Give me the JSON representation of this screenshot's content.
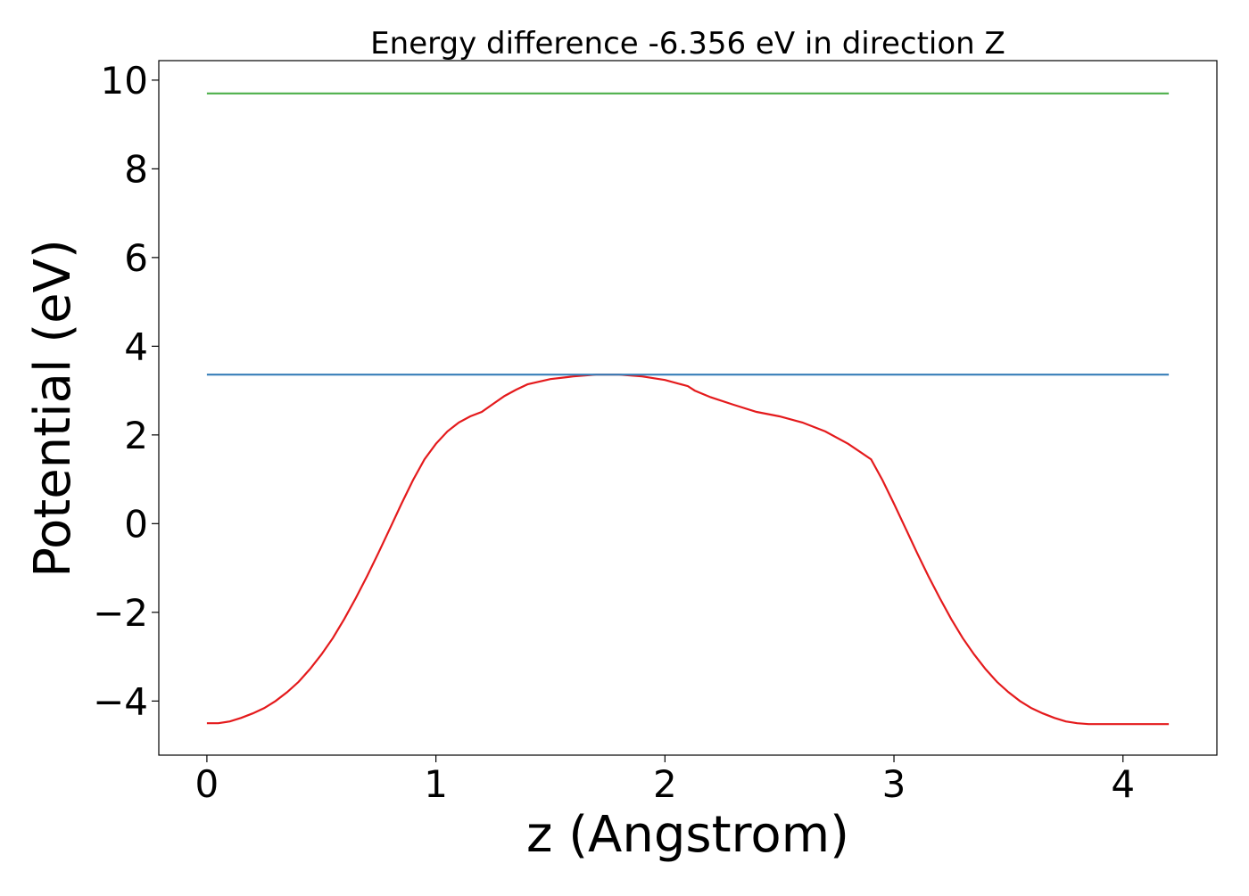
{
  "chart_data": {
    "type": "line",
    "title": "Energy difference -6.356 eV in direction Z",
    "xlabel": "z (Angstrom)",
    "ylabel": "Potential (eV)",
    "xlim": [
      -0.21,
      4.41
    ],
    "ylim": [
      -5.22,
      10.44
    ],
    "xticks": [
      0,
      1,
      2,
      3,
      4
    ],
    "xtick_labels": [
      "0",
      "1",
      "2",
      "3",
      "4"
    ],
    "yticks": [
      -4,
      -2,
      0,
      2,
      4,
      6,
      8,
      10
    ],
    "ytick_labels": [
      "−4",
      "−2",
      "0",
      "2",
      "4",
      "6",
      "8",
      "10"
    ],
    "grid": false,
    "series": [
      {
        "color": "#e41a1c",
        "x": [
          0,
          0.05,
          0.1,
          0.15,
          0.2,
          0.25,
          0.3,
          0.35,
          0.4,
          0.45,
          0.5,
          0.55,
          0.6,
          0.65,
          0.7,
          0.75,
          0.8,
          0.85,
          0.9,
          0.95,
          1.0,
          1.05,
          1.1,
          1.15,
          1.2,
          1.25,
          1.3,
          1.35,
          1.4,
          1.5,
          1.6,
          1.7,
          1.8,
          1.9,
          2.0,
          2.1,
          2.13,
          2.2,
          2.3,
          2.4,
          2.5,
          2.6,
          2.7,
          2.8,
          2.9,
          2.95,
          3.0,
          3.05,
          3.1,
          3.15,
          3.2,
          3.25,
          3.3,
          3.35,
          3.4,
          3.45,
          3.5,
          3.55,
          3.6,
          3.65,
          3.7,
          3.75,
          3.8,
          3.85,
          3.9,
          3.95,
          4.0,
          4.05,
          4.1,
          4.15,
          4.2
        ],
        "y": [
          -4.5,
          -4.5,
          -4.46,
          -4.38,
          -4.28,
          -4.16,
          -4.0,
          -3.8,
          -3.57,
          -3.28,
          -2.95,
          -2.58,
          -2.15,
          -1.68,
          -1.18,
          -0.65,
          -0.1,
          0.45,
          0.98,
          1.45,
          1.8,
          2.08,
          2.28,
          2.42,
          2.52,
          2.7,
          2.88,
          3.02,
          3.14,
          3.26,
          3.32,
          3.36,
          3.36,
          3.32,
          3.24,
          3.1,
          3.0,
          2.85,
          2.68,
          2.52,
          2.42,
          2.28,
          2.08,
          1.8,
          1.45,
          0.98,
          0.45,
          -0.1,
          -0.65,
          -1.18,
          -1.68,
          -2.15,
          -2.58,
          -2.95,
          -3.28,
          -3.57,
          -3.8,
          -4.0,
          -4.16,
          -4.28,
          -4.38,
          -4.46,
          -4.5,
          -4.52,
          -4.52,
          -4.52,
          -4.52,
          -4.52,
          -4.52,
          -4.52,
          -4.52
        ]
      },
      {
        "color": "#377eb8",
        "x": [
          0,
          4.2
        ],
        "y": [
          3.36,
          3.36
        ]
      },
      {
        "color": "#4daf4a",
        "x": [
          0,
          4.2
        ],
        "y": [
          9.7,
          9.7
        ]
      }
    ]
  }
}
